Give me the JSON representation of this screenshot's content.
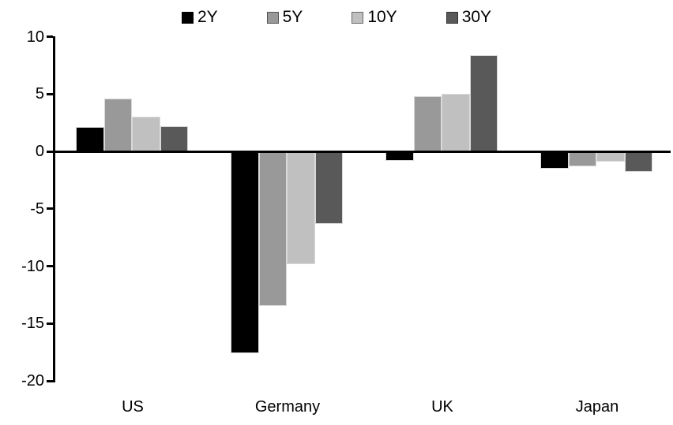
{
  "chart_data": {
    "type": "bar",
    "title": "",
    "xlabel": "",
    "ylabel": "",
    "categories": [
      "US",
      "Germany",
      "UK",
      "Japan"
    ],
    "series": [
      {
        "name": "2Y",
        "color": "#000000",
        "values": [
          2.1,
          -17.6,
          -0.8,
          -1.5
        ]
      },
      {
        "name": "5Y",
        "color": "#999999",
        "values": [
          4.6,
          -13.5,
          4.8,
          -1.3
        ]
      },
      {
        "name": "10Y",
        "color": "#c0c0c0",
        "values": [
          3.0,
          -9.8,
          5.0,
          -0.9
        ]
      },
      {
        "name": "30Y",
        "color": "#595959",
        "values": [
          2.2,
          -6.3,
          8.4,
          -1.8
        ]
      }
    ],
    "ylim": [
      -20,
      10
    ],
    "yticks": [
      10,
      5,
      0,
      -5,
      -10,
      -15,
      -20
    ],
    "grid": false,
    "legend_position": "top",
    "axis_color": "#000000",
    "background_color": "#ffffff"
  }
}
